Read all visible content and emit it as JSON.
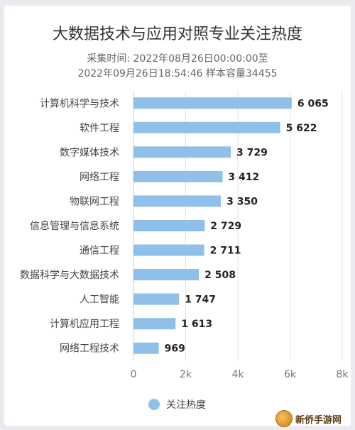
{
  "chart_data": {
    "type": "bar",
    "orientation": "horizontal",
    "title": "大数据技术与应用对照专业关注热度",
    "subtitle_lines": [
      "采集时间: 2022年08月26日00:00:00至",
      "2022年09月26日18:54:46 样本容量34455"
    ],
    "categories": [
      "计算机科学与技术",
      "软件工程",
      "数字媒体技术",
      "网络工程",
      "物联网工程",
      "信息管理与信息系统",
      "通信工程",
      "数据科学与大数据技术",
      "人工智能",
      "计算机应用工程",
      "网络工程技术"
    ],
    "values": [
      6065,
      5622,
      3729,
      3412,
      3350,
      2729,
      2711,
      2508,
      1747,
      1613,
      969
    ],
    "value_labels": [
      "6 065",
      "5 622",
      "3 729",
      "3 412",
      "3 350",
      "2 729",
      "2 711",
      "2 508",
      "1 747",
      "1 613",
      "969"
    ],
    "xlim": [
      0,
      8000
    ],
    "xticks": [
      0,
      2000,
      4000,
      6000,
      8000
    ],
    "xtick_labels": [
      "0",
      "2k",
      "4k",
      "6k",
      "8k"
    ],
    "grid": true,
    "legend": {
      "position": "bottom",
      "entries": [
        {
          "name": "关注热度",
          "color": "#8ec0ea"
        }
      ]
    },
    "bar_color": "#8ec0ea"
  },
  "watermark": {
    "text": "新侨手游网"
  }
}
